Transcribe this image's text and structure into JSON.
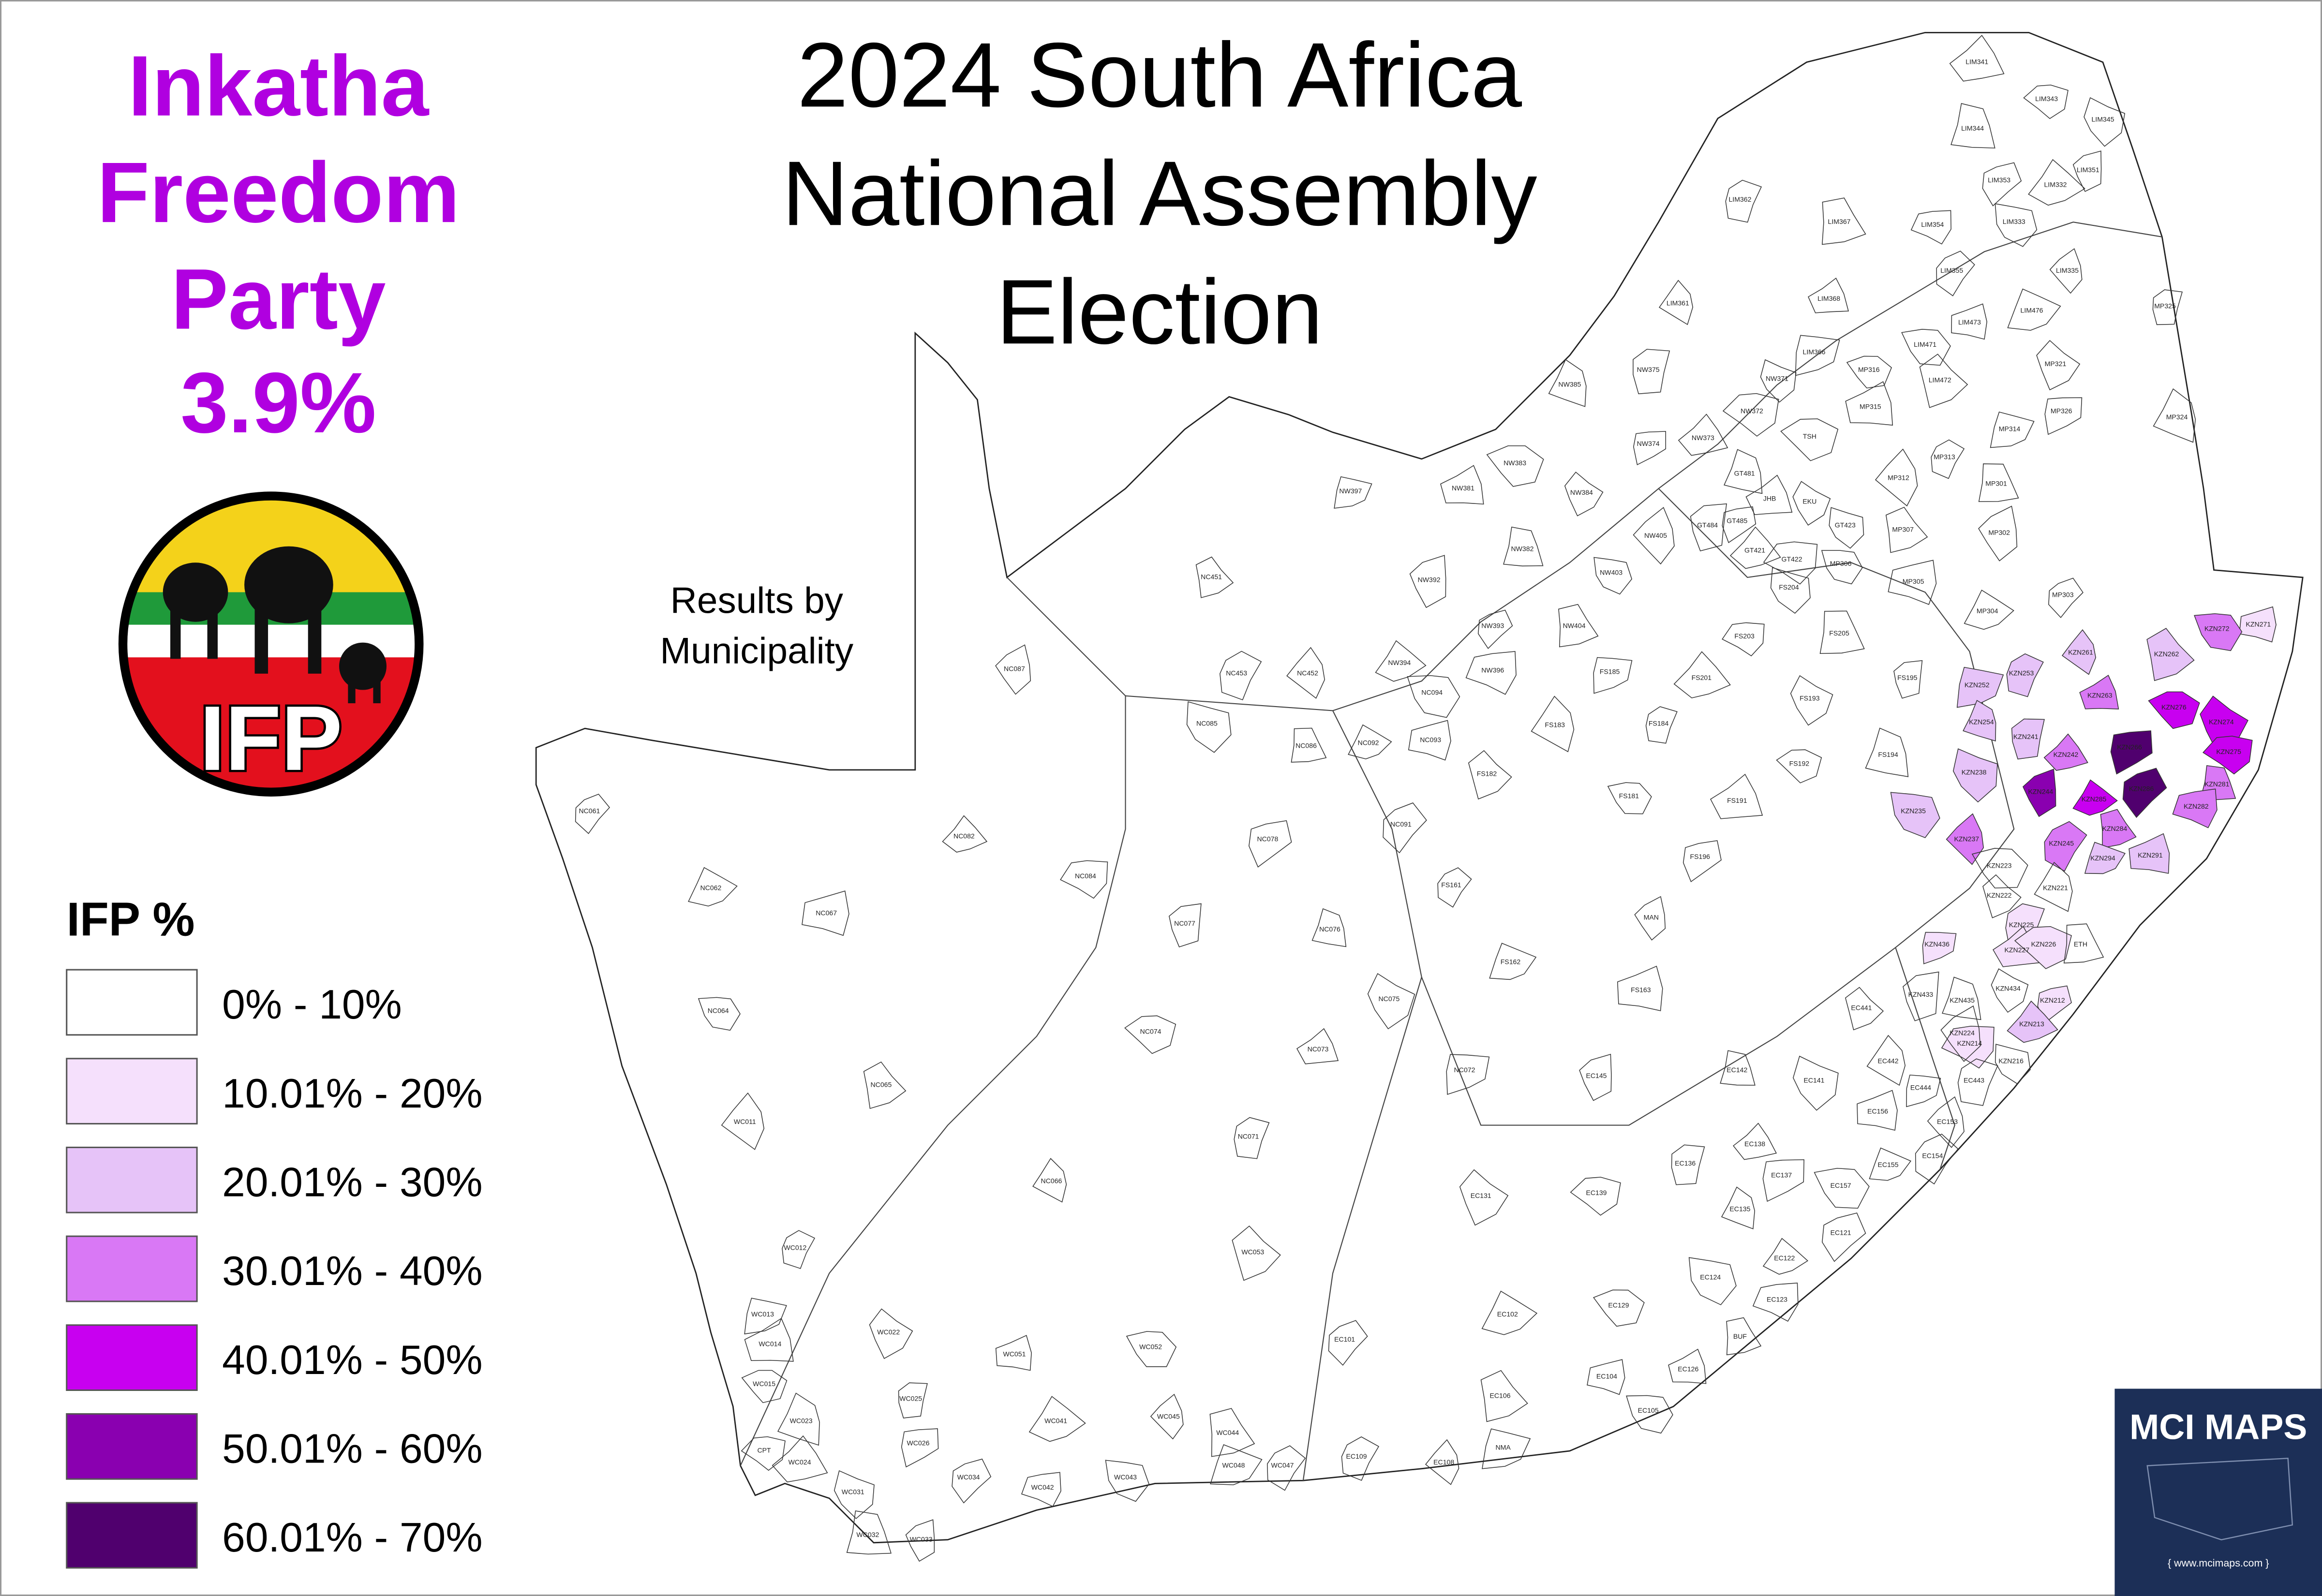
{
  "header": {
    "title_lines": [
      "2024 South Africa",
      "National Assembly",
      "Election"
    ],
    "party_lines": [
      "Inkatha",
      "Freedom",
      "Party",
      "3.9%"
    ],
    "subtitle_lines": [
      "Results by",
      "Municipality"
    ]
  },
  "logo": {
    "text": "IFP"
  },
  "legend": {
    "title": "IFP  %",
    "items": [
      {
        "label": "0% - 10%",
        "color": "#ffffff"
      },
      {
        "label": "10.01% - 20%",
        "color": "#f5e0fc"
      },
      {
        "label": "20.01% - 30%",
        "color": "#e6c3f8"
      },
      {
        "label": "30.01% - 40%",
        "color": "#d978f5"
      },
      {
        "label": "40.01% - 50%",
        "color": "#c800f0"
      },
      {
        "label": "50.01% - 60%",
        "color": "#8a00b0"
      },
      {
        "label": "60.01% - 70%",
        "color": "#50006e"
      }
    ]
  },
  "municipalities": [
    {
      "name": "KZN271",
      "color": "#f5e0fc"
    },
    {
      "name": "KZN272",
      "color": "#d978f5"
    },
    {
      "name": "KZN262",
      "color": "#e6c3f8"
    },
    {
      "name": "KZN261",
      "color": "#e6c3f8"
    },
    {
      "name": "KZN253",
      "color": "#e6c3f8"
    },
    {
      "name": "KZN252",
      "color": "#e6c3f8"
    },
    {
      "name": "KZN263",
      "color": "#d978f5"
    },
    {
      "name": "KZN276",
      "color": "#c800f0"
    },
    {
      "name": "KZN274",
      "color": "#c800f0"
    },
    {
      "name": "KZN254",
      "color": "#e6c3f8"
    },
    {
      "name": "KZN241",
      "color": "#e6c3f8"
    },
    {
      "name": "KZN266",
      "color": "#50006e"
    },
    {
      "name": "KZN242",
      "color": "#d978f5"
    },
    {
      "name": "KZN275",
      "color": "#c800f0"
    },
    {
      "name": "KZN238",
      "color": "#e6c3f8"
    },
    {
      "name": "KZN281",
      "color": "#d978f5"
    },
    {
      "name": "KZN244",
      "color": "#8a00b0"
    },
    {
      "name": "KZN286",
      "color": "#50006e"
    },
    {
      "name": "KZN285",
      "color": "#c800f0"
    },
    {
      "name": "KZN282",
      "color": "#d978f5"
    },
    {
      "name": "KZN235",
      "color": "#e6c3f8"
    },
    {
      "name": "KZN284",
      "color": "#d978f5"
    },
    {
      "name": "KZN237",
      "color": "#d978f5"
    },
    {
      "name": "KZN245",
      "color": "#d978f5"
    },
    {
      "name": "KZN294",
      "color": "#e6c3f8"
    },
    {
      "name": "KZN291",
      "color": "#e6c3f8"
    },
    {
      "name": "KZN223",
      "color": "#ffffff"
    },
    {
      "name": "KZN222",
      "color": "#ffffff"
    },
    {
      "name": "KZN221",
      "color": "#ffffff"
    },
    {
      "name": "KZN225",
      "color": "#f5e0fc"
    },
    {
      "name": "KZN436",
      "color": "#f5e0fc"
    },
    {
      "name": "KZN227",
      "color": "#f5e0fc"
    },
    {
      "name": "KZN226",
      "color": "#f5e0fc"
    },
    {
      "name": "KZN434",
      "color": "#ffffff"
    },
    {
      "name": "KZN435",
      "color": "#ffffff"
    },
    {
      "name": "KZN433",
      "color": "#ffffff"
    },
    {
      "name": "KZN212",
      "color": "#f5e0fc"
    },
    {
      "name": "KZN213",
      "color": "#e6c3f8"
    },
    {
      "name": "KZN214",
      "color": "#f5e0fc"
    },
    {
      "name": "KZN216",
      "color": "#ffffff"
    },
    {
      "name": "ETH",
      "color": "#ffffff"
    },
    {
      "name": "KZN224",
      "color": "#ffffff"
    },
    {
      "name": "NC061",
      "color": "#ffffff"
    },
    {
      "name": "NC062",
      "color": "#ffffff"
    },
    {
      "name": "NC067",
      "color": "#ffffff"
    },
    {
      "name": "NC064",
      "color": "#ffffff"
    },
    {
      "name": "NC065",
      "color": "#ffffff"
    },
    {
      "name": "WC011",
      "color": "#ffffff"
    },
    {
      "name": "WC012",
      "color": "#ffffff"
    },
    {
      "name": "WC013",
      "color": "#ffffff"
    },
    {
      "name": "WC014",
      "color": "#ffffff"
    },
    {
      "name": "WC015",
      "color": "#ffffff"
    },
    {
      "name": "WC022",
      "color": "#ffffff"
    },
    {
      "name": "WC023",
      "color": "#ffffff"
    },
    {
      "name": "WC025",
      "color": "#ffffff"
    },
    {
      "name": "WC026",
      "color": "#ffffff"
    },
    {
      "name": "WC024",
      "color": "#ffffff"
    },
    {
      "name": "CPT",
      "color": "#ffffff"
    },
    {
      "name": "WC031",
      "color": "#ffffff"
    },
    {
      "name": "WC032",
      "color": "#ffffff"
    },
    {
      "name": "WC033",
      "color": "#ffffff"
    },
    {
      "name": "WC034",
      "color": "#ffffff"
    },
    {
      "name": "WC041",
      "color": "#ffffff"
    },
    {
      "name": "WC042",
      "color": "#ffffff"
    },
    {
      "name": "WC043",
      "color": "#ffffff"
    },
    {
      "name": "WC044",
      "color": "#ffffff"
    },
    {
      "name": "WC045",
      "color": "#ffffff"
    },
    {
      "name": "WC047",
      "color": "#ffffff"
    },
    {
      "name": "WC048",
      "color": "#ffffff"
    },
    {
      "name": "WC051",
      "color": "#ffffff"
    },
    {
      "name": "WC052",
      "color": "#ffffff"
    },
    {
      "name": "WC053",
      "color": "#ffffff"
    },
    {
      "name": "NC066",
      "color": "#ffffff"
    },
    {
      "name": "NC071",
      "color": "#ffffff"
    },
    {
      "name": "NC072",
      "color": "#ffffff"
    },
    {
      "name": "NC073",
      "color": "#ffffff"
    },
    {
      "name": "NC074",
      "color": "#ffffff"
    },
    {
      "name": "NC075",
      "color": "#ffffff"
    },
    {
      "name": "NC076",
      "color": "#ffffff"
    },
    {
      "name": "NC077",
      "color": "#ffffff"
    },
    {
      "name": "NC078",
      "color": "#ffffff"
    },
    {
      "name": "NC082",
      "color": "#ffffff"
    },
    {
      "name": "NC084",
      "color": "#ffffff"
    },
    {
      "name": "NC085",
      "color": "#ffffff"
    },
    {
      "name": "NC086",
      "color": "#ffffff"
    },
    {
      "name": "NC087",
      "color": "#ffffff"
    },
    {
      "name": "NC091",
      "color": "#ffffff"
    },
    {
      "name": "NC092",
      "color": "#ffffff"
    },
    {
      "name": "NC093",
      "color": "#ffffff"
    },
    {
      "name": "NC094",
      "color": "#ffffff"
    },
    {
      "name": "NC451",
      "color": "#ffffff"
    },
    {
      "name": "NC452",
      "color": "#ffffff"
    },
    {
      "name": "NC453",
      "color": "#ffffff"
    },
    {
      "name": "NW397",
      "color": "#ffffff"
    },
    {
      "name": "NW381",
      "color": "#ffffff"
    },
    {
      "name": "NW383",
      "color": "#ffffff"
    },
    {
      "name": "NW384",
      "color": "#ffffff"
    },
    {
      "name": "NW385",
      "color": "#ffffff"
    },
    {
      "name": "NW375",
      "color": "#ffffff"
    },
    {
      "name": "NW374",
      "color": "#ffffff"
    },
    {
      "name": "NW373",
      "color": "#ffffff"
    },
    {
      "name": "NW372",
      "color": "#ffffff"
    },
    {
      "name": "NW371",
      "color": "#ffffff"
    },
    {
      "name": "NW382",
      "color": "#ffffff"
    },
    {
      "name": "NW392",
      "color": "#ffffff"
    },
    {
      "name": "NW393",
      "color": "#ffffff"
    },
    {
      "name": "NW394",
      "color": "#ffffff"
    },
    {
      "name": "NW396",
      "color": "#ffffff"
    },
    {
      "name": "NW403",
      "color": "#ffffff"
    },
    {
      "name": "NW404",
      "color": "#ffffff"
    },
    {
      "name": "NW405",
      "color": "#ffffff"
    },
    {
      "name": "FS161",
      "color": "#ffffff"
    },
    {
      "name": "FS162",
      "color": "#ffffff"
    },
    {
      "name": "FS163",
      "color": "#ffffff"
    },
    {
      "name": "FS181",
      "color": "#ffffff"
    },
    {
      "name": "FS182",
      "color": "#ffffff"
    },
    {
      "name": "FS183",
      "color": "#ffffff"
    },
    {
      "name": "FS184",
      "color": "#ffffff"
    },
    {
      "name": "FS185",
      "color": "#ffffff"
    },
    {
      "name": "FS191",
      "color": "#ffffff"
    },
    {
      "name": "FS192",
      "color": "#ffffff"
    },
    {
      "name": "FS193",
      "color": "#ffffff"
    },
    {
      "name": "FS194",
      "color": "#ffffff"
    },
    {
      "name": "FS195",
      "color": "#ffffff"
    },
    {
      "name": "FS196",
      "color": "#ffffff"
    },
    {
      "name": "FS201",
      "color": "#ffffff"
    },
    {
      "name": "FS203",
      "color": "#ffffff"
    },
    {
      "name": "FS204",
      "color": "#ffffff"
    },
    {
      "name": "FS205",
      "color": "#ffffff"
    },
    {
      "name": "MAN",
      "color": "#ffffff"
    },
    {
      "name": "EC101",
      "color": "#ffffff"
    },
    {
      "name": "EC102",
      "color": "#ffffff"
    },
    {
      "name": "EC104",
      "color": "#ffffff"
    },
    {
      "name": "EC105",
      "color": "#ffffff"
    },
    {
      "name": "EC106",
      "color": "#ffffff"
    },
    {
      "name": "EC108",
      "color": "#ffffff"
    },
    {
      "name": "EC109",
      "color": "#ffffff"
    },
    {
      "name": "NMA",
      "color": "#ffffff"
    },
    {
      "name": "EC126",
      "color": "#ffffff"
    },
    {
      "name": "EC129",
      "color": "#ffffff"
    },
    {
      "name": "EC131",
      "color": "#ffffff"
    },
    {
      "name": "EC135",
      "color": "#ffffff"
    },
    {
      "name": "EC136",
      "color": "#ffffff"
    },
    {
      "name": "EC137",
      "color": "#ffffff"
    },
    {
      "name": "EC138",
      "color": "#ffffff"
    },
    {
      "name": "EC139",
      "color": "#ffffff"
    },
    {
      "name": "EC141",
      "color": "#ffffff"
    },
    {
      "name": "EC142",
      "color": "#ffffff"
    },
    {
      "name": "EC145",
      "color": "#ffffff"
    },
    {
      "name": "EC121",
      "color": "#ffffff"
    },
    {
      "name": "EC122",
      "color": "#ffffff"
    },
    {
      "name": "EC123",
      "color": "#ffffff"
    },
    {
      "name": "EC124",
      "color": "#ffffff"
    },
    {
      "name": "BUF",
      "color": "#ffffff"
    },
    {
      "name": "EC153",
      "color": "#ffffff"
    },
    {
      "name": "EC154",
      "color": "#ffffff"
    },
    {
      "name": "EC155",
      "color": "#ffffff"
    },
    {
      "name": "EC156",
      "color": "#ffffff"
    },
    {
      "name": "EC157",
      "color": "#ffffff"
    },
    {
      "name": "EC441",
      "color": "#ffffff"
    },
    {
      "name": "EC442",
      "color": "#ffffff"
    },
    {
      "name": "EC443",
      "color": "#ffffff"
    },
    {
      "name": "EC444",
      "color": "#ffffff"
    },
    {
      "name": "JHB",
      "color": "#ffffff"
    },
    {
      "name": "TSH",
      "color": "#ffffff"
    },
    {
      "name": "EKU",
      "color": "#ffffff"
    },
    {
      "name": "GT481",
      "color": "#ffffff"
    },
    {
      "name": "GT484",
      "color": "#ffffff"
    },
    {
      "name": "GT485",
      "color": "#ffffff"
    },
    {
      "name": "GT421",
      "color": "#ffffff"
    },
    {
      "name": "GT422",
      "color": "#ffffff"
    },
    {
      "name": "GT423",
      "color": "#ffffff"
    },
    {
      "name": "MP301",
      "color": "#ffffff"
    },
    {
      "name": "MP302",
      "color": "#ffffff"
    },
    {
      "name": "MP303",
      "color": "#ffffff"
    },
    {
      "name": "MP304",
      "color": "#ffffff"
    },
    {
      "name": "MP305",
      "color": "#ffffff"
    },
    {
      "name": "MP306",
      "color": "#ffffff"
    },
    {
      "name": "MP307",
      "color": "#ffffff"
    },
    {
      "name": "MP312",
      "color": "#ffffff"
    },
    {
      "name": "MP313",
      "color": "#ffffff"
    },
    {
      "name": "MP314",
      "color": "#ffffff"
    },
    {
      "name": "MP315",
      "color": "#ffffff"
    },
    {
      "name": "MP316",
      "color": "#ffffff"
    },
    {
      "name": "MP321",
      "color": "#ffffff"
    },
    {
      "name": "MP324",
      "color": "#ffffff"
    },
    {
      "name": "MP325",
      "color": "#ffffff"
    },
    {
      "name": "MP326",
      "color": "#ffffff"
    },
    {
      "name": "LIM341",
      "color": "#ffffff"
    },
    {
      "name": "LIM343",
      "color": "#ffffff"
    },
    {
      "name": "LIM345",
      "color": "#ffffff"
    },
    {
      "name": "LIM344",
      "color": "#ffffff"
    },
    {
      "name": "LIM351",
      "color": "#ffffff"
    },
    {
      "name": "LIM353",
      "color": "#ffffff"
    },
    {
      "name": "LIM332",
      "color": "#ffffff"
    },
    {
      "name": "LIM354",
      "color": "#ffffff"
    },
    {
      "name": "LIM333",
      "color": "#ffffff"
    },
    {
      "name": "LIM367",
      "color": "#ffffff"
    },
    {
      "name": "LIM335",
      "color": "#ffffff"
    },
    {
      "name": "LIM355",
      "color": "#ffffff"
    },
    {
      "name": "LIM476",
      "color": "#ffffff"
    },
    {
      "name": "LIM473",
      "color": "#ffffff"
    },
    {
      "name": "LIM471",
      "color": "#ffffff"
    },
    {
      "name": "LIM472",
      "color": "#ffffff"
    },
    {
      "name": "LIM361",
      "color": "#ffffff"
    },
    {
      "name": "LIM362",
      "color": "#ffffff"
    },
    {
      "name": "LIM366",
      "color": "#ffffff"
    },
    {
      "name": "LIM368",
      "color": "#ffffff"
    }
  ],
  "branding": {
    "name": "MCI MAPS",
    "url": "{ www.mcimaps.com }"
  }
}
